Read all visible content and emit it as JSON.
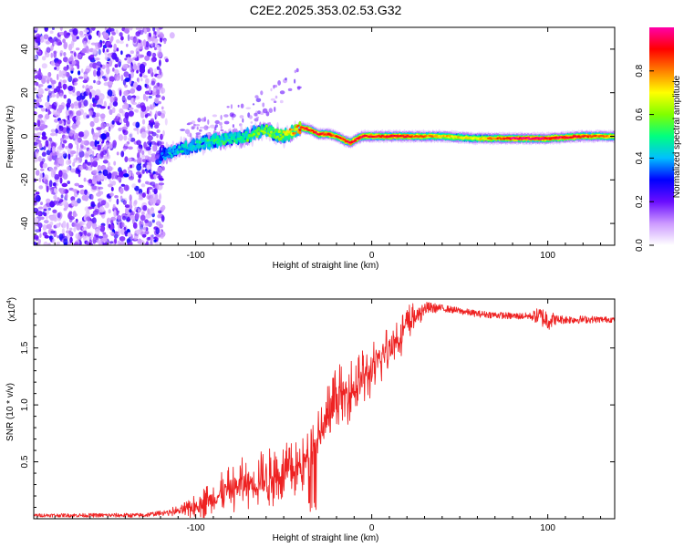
{
  "title": "C2E2.2025.353.02.53.G32",
  "chart_data": [
    {
      "type": "heatmap",
      "name": "spectrogram",
      "xlabel": "Height of straight line (km)",
      "ylabel": "Frequency (Hz)",
      "xlim": [
        -192,
        138
      ],
      "ylim": [
        -50,
        50
      ],
      "x_ticks": [
        -100,
        0,
        100
      ],
      "x_tick_labels": [
        "-100",
        "0",
        "100"
      ],
      "y_ticks": [
        -40,
        -20,
        0,
        20,
        40
      ],
      "y_tick_labels": [
        "-40",
        "-20",
        "0",
        "20",
        "40"
      ],
      "colorbar": {
        "label": "Normalized spectral amplitude",
        "range": [
          0,
          1
        ],
        "ticks": [
          0,
          0.2,
          0.4,
          0.6,
          0.8
        ],
        "tick_labels": [
          "0.0",
          "0.2",
          "0.4",
          "0.6",
          "0.8"
        ],
        "colors": [
          "#ffffff",
          "#cc99ff",
          "#6a0dff",
          "#0000ff",
          "#00bfff",
          "#00ff80",
          "#80ff00",
          "#ffff00",
          "#ff8000",
          "#ff0000",
          "#ff00aa"
        ]
      },
      "noise_region_x": [
        -192,
        -118
      ],
      "trace": {
        "x": [
          -120,
          -110,
          -100,
          -90,
          -80,
          -70,
          -60,
          -55,
          -50,
          -45,
          -40,
          -35,
          -30,
          -25,
          -20,
          -15,
          -12,
          -8,
          -5,
          0,
          10,
          20,
          40,
          60,
          80,
          100,
          120,
          138
        ],
        "freq": [
          -9,
          -6,
          -4,
          -2,
          -1,
          0,
          3,
          1,
          0,
          2,
          4,
          3,
          1,
          1,
          0,
          -2,
          -3,
          -1,
          0,
          0,
          0,
          0,
          0,
          -1,
          -1,
          -1,
          0,
          0
        ],
        "amplitude": [
          0.35,
          0.45,
          0.45,
          0.5,
          0.5,
          0.55,
          0.6,
          0.6,
          0.7,
          0.8,
          0.9,
          0.9,
          0.9,
          0.9,
          0.85,
          0.9,
          0.95,
          0.9,
          0.9,
          0.9,
          0.9,
          0.9,
          0.75,
          0.7,
          0.95,
          0.95,
          0.9,
          0.75
        ]
      },
      "streak": {
        "x": [
          -110,
          -60,
          -40
        ],
        "freq": [
          -2,
          15,
          28
        ]
      }
    },
    {
      "type": "line",
      "name": "snr",
      "xlabel": "Height of straight line (km)",
      "ylabel": "SNR (10 * v/v)",
      "scale_label": "(x10",
      "scale_exponent": "4",
      "xlim": [
        -192,
        138
      ],
      "ylim": [
        0,
        1.93
      ],
      "x_ticks": [
        -100,
        0,
        100
      ],
      "x_tick_labels": [
        "-100",
        "0",
        "100"
      ],
      "y_ticks": [
        0.5,
        1.0,
        1.5
      ],
      "y_tick_labels": [
        "0.5",
        "1.0",
        "1.5"
      ],
      "color": "#ee2222",
      "envelope": {
        "x": [
          -192,
          -130,
          -105,
          -90,
          -75,
          -60,
          -50,
          -40,
          -30,
          -25,
          -20,
          -10,
          0,
          10,
          20,
          30,
          40,
          60,
          80,
          95,
          100,
          120,
          138
        ],
        "y": [
          0.03,
          0.03,
          0.08,
          0.18,
          0.3,
          0.35,
          0.4,
          0.45,
          0.7,
          0.9,
          1.05,
          1.15,
          1.3,
          1.5,
          1.7,
          1.85,
          1.85,
          1.8,
          1.78,
          1.78,
          1.75,
          1.75,
          1.75
        ]
      },
      "noise_amplitude": {
        "x": [
          -192,
          -120,
          -110,
          -90,
          -70,
          -55,
          -40,
          -35,
          -30,
          -20,
          -10,
          0,
          10,
          20,
          30,
          40,
          90,
          95,
          100,
          105,
          138
        ],
        "y": [
          0.015,
          0.02,
          0.05,
          0.17,
          0.25,
          0.27,
          0.25,
          0.22,
          0.3,
          0.3,
          0.28,
          0.25,
          0.22,
          0.2,
          0.06,
          0.03,
          0.03,
          0.08,
          0.1,
          0.04,
          0.025
        ]
      },
      "samples": 1500
    }
  ]
}
